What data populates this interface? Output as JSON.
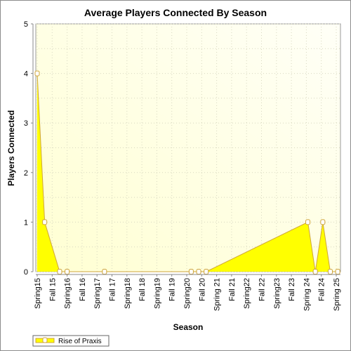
{
  "chart_data": {
    "type": "area",
    "title": "Average Players Connected By Season",
    "xlabel": "Season",
    "ylabel": "Players Connected",
    "ylim": [
      0,
      5
    ],
    "yticks": [
      "0",
      "1",
      "2",
      "3",
      "4",
      "5"
    ],
    "x": [
      "Spring15",
      "Fall 15",
      "Spring16",
      "Fall 16",
      "Spring17",
      "Fall 17",
      "Spring18",
      "Fall 18",
      "Spring19",
      "Fall 19",
      "Spring20",
      "Fall 20",
      "Spring 21",
      "Fall 21",
      "Spring22",
      "Fall 22",
      "Spring23",
      "Fall 23",
      "Spring 24",
      "Fall 24",
      "Spring 25"
    ],
    "series": [
      {
        "name": "Rise of Praxis",
        "points": [
          {
            "x": 0.0,
            "y": 4
          },
          {
            "x": 0.5,
            "y": 1
          },
          {
            "x": 1.5,
            "y": 0
          },
          {
            "x": 2.0,
            "y": 0
          },
          {
            "x": 4.5,
            "y": 0
          },
          {
            "x": 10.3,
            "y": 0
          },
          {
            "x": 10.8,
            "y": 0
          },
          {
            "x": 11.3,
            "y": 0
          },
          {
            "x": 18.1,
            "y": 1
          },
          {
            "x": 18.6,
            "y": 0
          },
          {
            "x": 19.1,
            "y": 1
          },
          {
            "x": 19.6,
            "y": 0
          },
          {
            "x": 20.1,
            "y": 0
          }
        ]
      }
    ],
    "grid": true,
    "legend_position": "bottom-left",
    "colors": {
      "fill": "#ffff00",
      "line": "#cfa53b",
      "plot_bg": "#ffffe0"
    }
  }
}
